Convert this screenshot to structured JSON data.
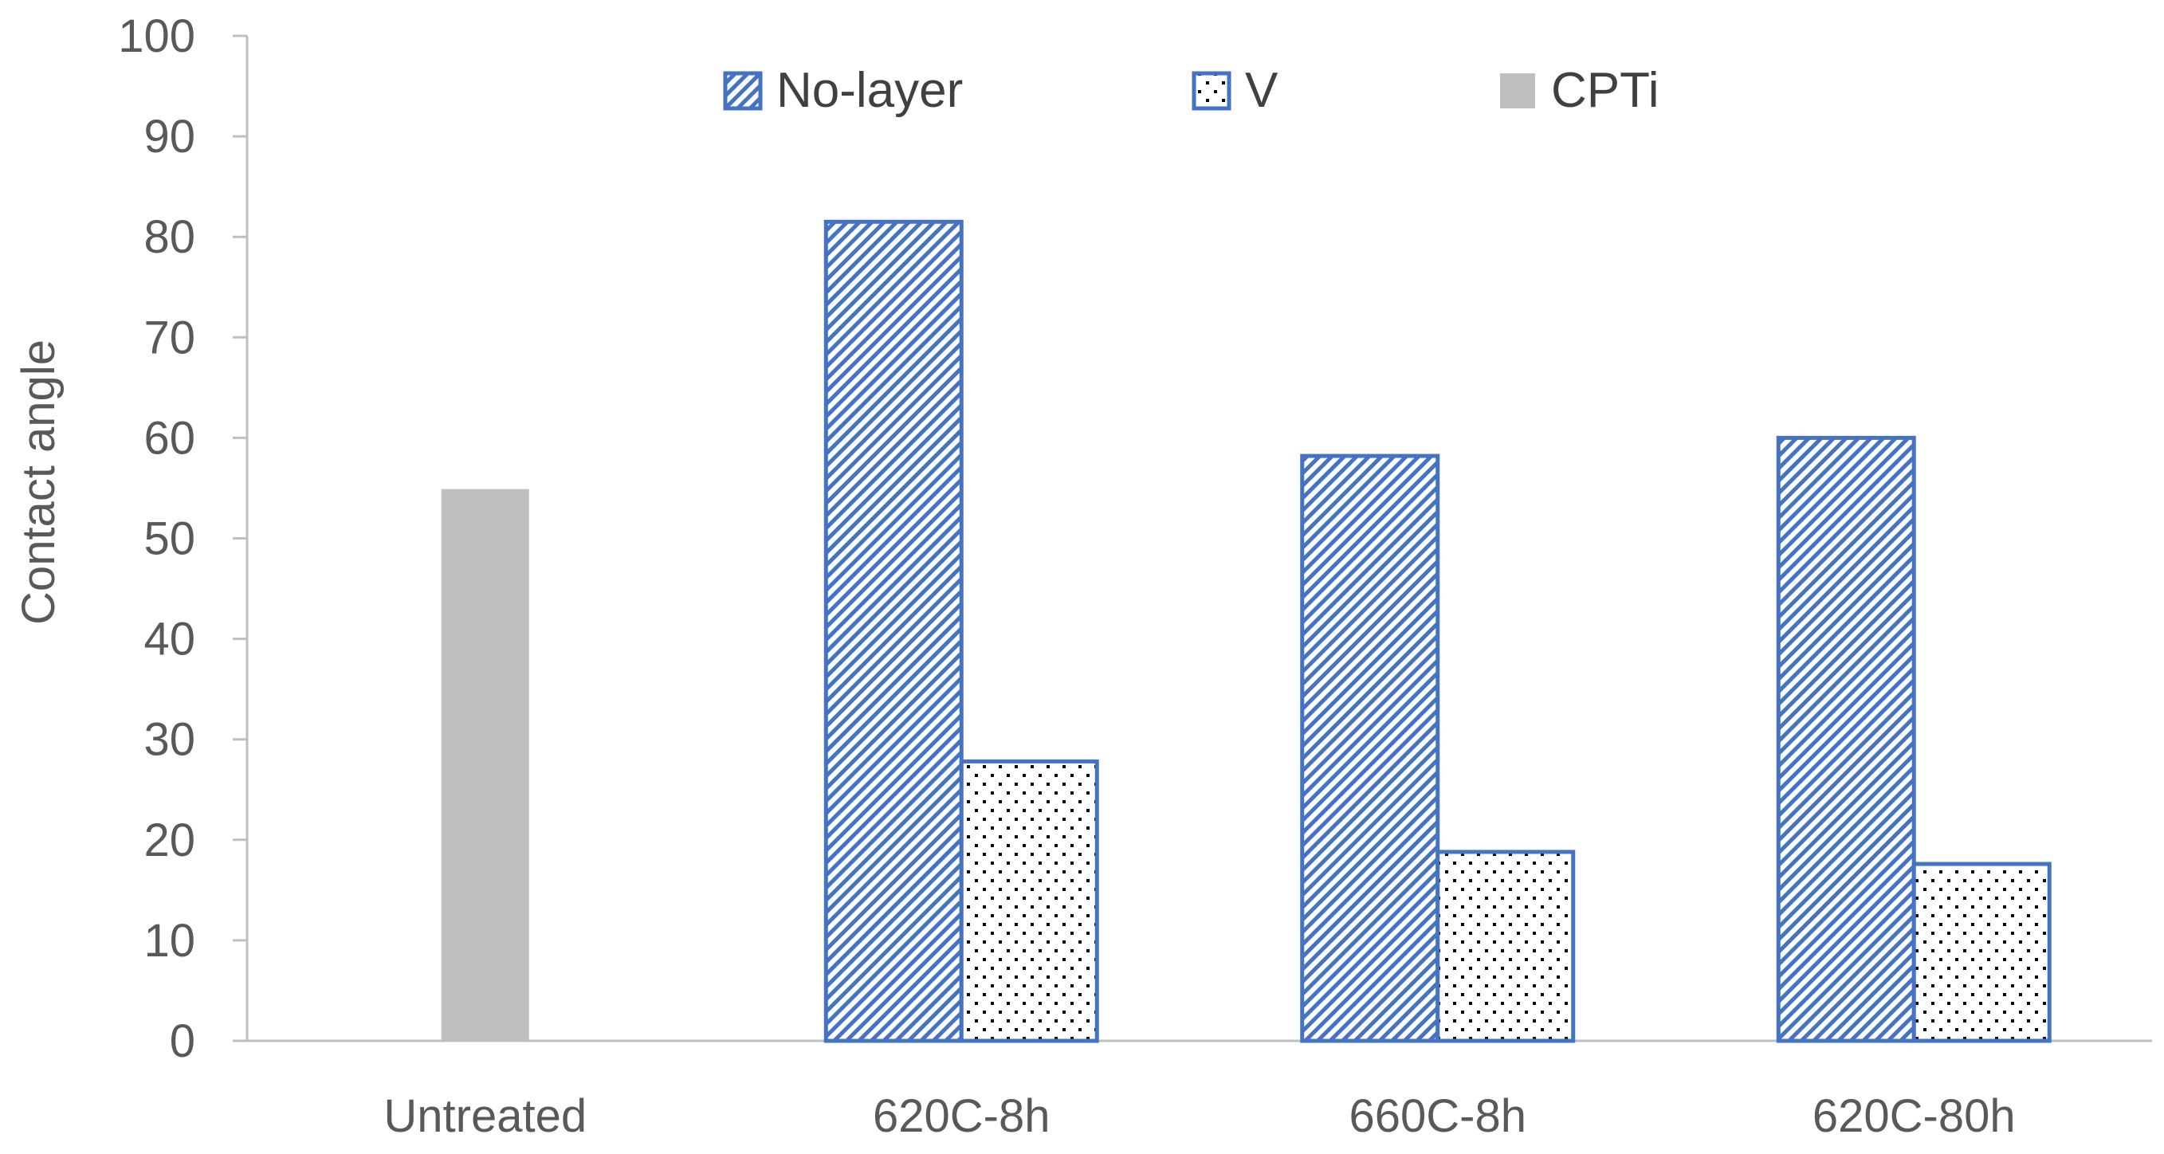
{
  "chart_data": {
    "type": "bar",
    "categories": [
      "Untreated",
      "620C-8h",
      "660C-8h",
      "620C-80h"
    ],
    "series": [
      {
        "name": "No-layer",
        "values": [
          null,
          81.5,
          58.2,
          60.0
        ],
        "color": "#4472C4",
        "pattern": "diagonal-hatch"
      },
      {
        "name": "V",
        "values": [
          null,
          27.8,
          18.8,
          17.6
        ],
        "color": "#4472C4",
        "pattern": "dots"
      },
      {
        "name": "CPTi",
        "values": [
          54.9,
          null,
          null,
          null
        ],
        "color": "#BFBFBF",
        "pattern": "solid"
      }
    ],
    "ylabel": "Contact angle",
    "ylim": [
      0,
      100
    ],
    "yticks": [
      "0",
      "10",
      "20",
      "30",
      "40",
      "50",
      "60",
      "70",
      "80",
      "90",
      "100"
    ],
    "grid": false,
    "legend_position": "top"
  }
}
